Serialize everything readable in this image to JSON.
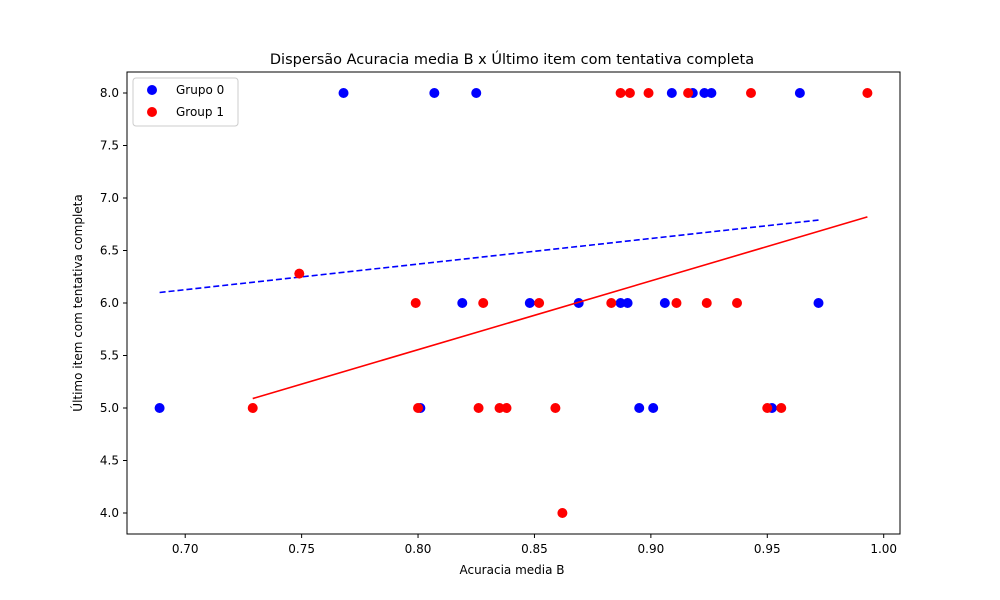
{
  "chart_data": {
    "type": "scatter",
    "title": "Dispersão Acuracia media B x Último item com tentativa completa",
    "xlabel": "Acuracia media B",
    "ylabel": "Último item com tentativa completa",
    "xlim": [
      0.675,
      1.007
    ],
    "ylim": [
      3.8,
      8.2
    ],
    "xticks": [
      "0.70",
      "0.75",
      "0.80",
      "0.85",
      "0.90",
      "0.95",
      "1.00"
    ],
    "xtick_values": [
      0.7,
      0.75,
      0.8,
      0.85,
      0.9,
      0.95,
      1.0
    ],
    "yticks": [
      "4.0",
      "4.5",
      "5.0",
      "5.5",
      "6.0",
      "6.5",
      "7.0",
      "7.5",
      "8.0"
    ],
    "ytick_values": [
      4.0,
      4.5,
      5.0,
      5.5,
      6.0,
      6.5,
      7.0,
      7.5,
      8.0
    ],
    "grid": false,
    "legend_position": "top-left",
    "series": [
      {
        "name": "Grupo 0",
        "color": "#0000ff",
        "points": [
          [
            0.768,
            8.0
          ],
          [
            0.807,
            8.0
          ],
          [
            0.825,
            8.0
          ],
          [
            0.909,
            8.0
          ],
          [
            0.918,
            8.0
          ],
          [
            0.923,
            8.0
          ],
          [
            0.926,
            8.0
          ],
          [
            0.964,
            8.0
          ],
          [
            0.819,
            6.0
          ],
          [
            0.848,
            6.0
          ],
          [
            0.869,
            6.0
          ],
          [
            0.887,
            6.0
          ],
          [
            0.89,
            6.0
          ],
          [
            0.906,
            6.0
          ],
          [
            0.972,
            6.0
          ],
          [
            0.689,
            5.0
          ],
          [
            0.801,
            5.0
          ],
          [
            0.895,
            5.0
          ],
          [
            0.901,
            5.0
          ],
          [
            0.952,
            5.0
          ]
        ],
        "trend": {
          "x": [
            0.689,
            0.972
          ],
          "y": [
            6.1,
            6.79
          ],
          "style": "dashed"
        }
      },
      {
        "name": "Group 1",
        "color": "#ff0000",
        "points": [
          [
            0.887,
            8.0
          ],
          [
            0.891,
            8.0
          ],
          [
            0.899,
            8.0
          ],
          [
            0.916,
            8.0
          ],
          [
            0.943,
            8.0
          ],
          [
            0.993,
            8.0
          ],
          [
            0.749,
            6.28
          ],
          [
            0.799,
            6.0
          ],
          [
            0.828,
            6.0
          ],
          [
            0.852,
            6.0
          ],
          [
            0.883,
            6.0
          ],
          [
            0.911,
            6.0
          ],
          [
            0.924,
            6.0
          ],
          [
            0.937,
            6.0
          ],
          [
            0.729,
            5.0
          ],
          [
            0.8,
            5.0
          ],
          [
            0.826,
            5.0
          ],
          [
            0.835,
            5.0
          ],
          [
            0.838,
            5.0
          ],
          [
            0.859,
            5.0
          ],
          [
            0.95,
            5.0
          ],
          [
            0.956,
            5.0
          ],
          [
            0.862,
            4.0
          ]
        ],
        "trend": {
          "x": [
            0.729,
            0.993
          ],
          "y": [
            5.09,
            6.82
          ],
          "style": "solid"
        }
      }
    ]
  }
}
